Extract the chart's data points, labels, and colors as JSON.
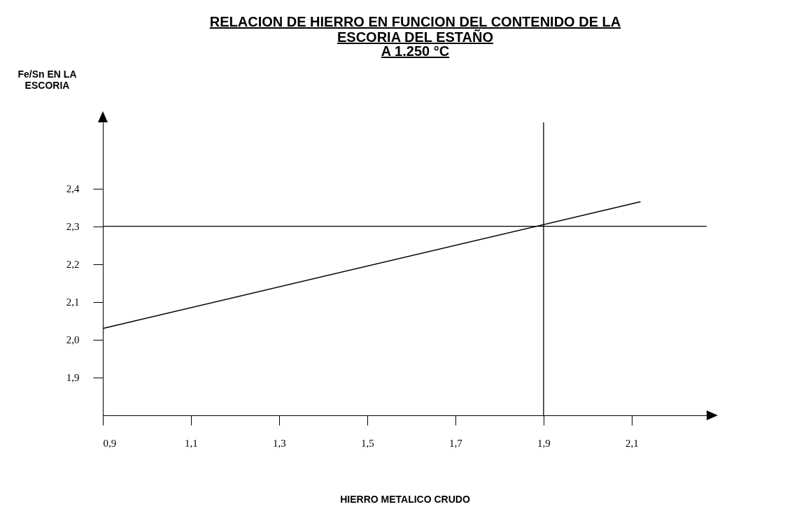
{
  "chart_data": {
    "type": "line",
    "title": "RELACION DE HIERRO EN FUNCION DEL CONTENIDO DE LA ESCORIA DEL ESTAÑO",
    "subtitle": "A 1.250 °C",
    "xlabel": "HIERRO METALICO CRUDO",
    "ylabel": "Fe/Sn EN LA ESCORIA",
    "x": [
      0.9,
      2.12
    ],
    "series": [
      {
        "color": "#000000",
        "values": [
          2.03,
          2.365
        ]
      }
    ],
    "xlim": [
      0.9,
      2.27
    ],
    "ylim": [
      1.8,
      2.575
    ],
    "xticks": [
      {
        "value": 0.9,
        "label": "0,9"
      },
      {
        "value": 1.1,
        "label": "1,1"
      },
      {
        "value": 1.3,
        "label": "1,3"
      },
      {
        "value": 1.5,
        "label": "1,5"
      },
      {
        "value": 1.7,
        "label": "1,7"
      },
      {
        "value": 1.9,
        "label": "1,9"
      },
      {
        "value": 2.1,
        "label": "2,1"
      }
    ],
    "yticks": [
      {
        "value": 1.9,
        "label": "1,9"
      },
      {
        "value": 2.0,
        "label": "2,0"
      },
      {
        "value": 2.1,
        "label": "2,1"
      },
      {
        "value": 2.2,
        "label": "2,2"
      },
      {
        "value": 2.3,
        "label": "2,3"
      },
      {
        "value": 2.4,
        "label": "2,4"
      }
    ],
    "ref_lines": [
      {
        "axis": "y",
        "value": 2.3,
        "color": "#000000"
      },
      {
        "axis": "x",
        "value": 1.9,
        "color": "#000000"
      }
    ],
    "grid": false,
    "marker": "none",
    "line_style": "solid"
  }
}
